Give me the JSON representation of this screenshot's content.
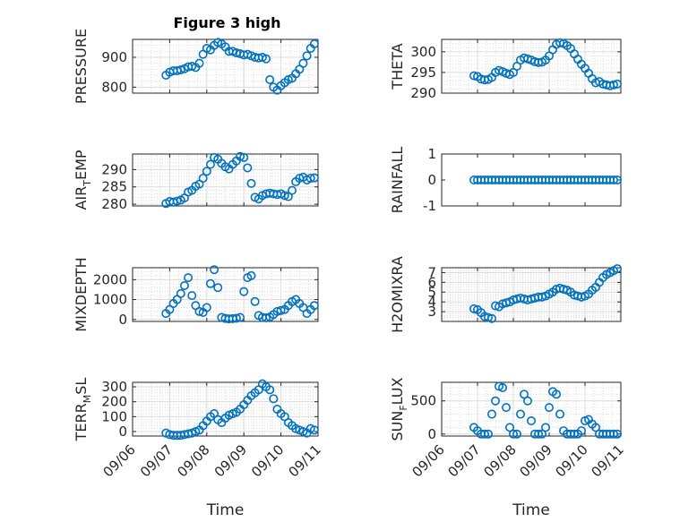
{
  "colors": {
    "marker": "#0072BD",
    "grid": "#dcdcdc",
    "axis": "#262626"
  },
  "chart_data": [
    {
      "type": "scatter",
      "id": "pressure",
      "title": "Figure 3 high",
      "ylabel": "PRESSURE",
      "ylabel_sub": "",
      "ylim": [
        780,
        960
      ],
      "yticks": [
        "800",
        "900"
      ],
      "ytick_values": [
        800,
        900
      ],
      "xlim": [
        0,
        5
      ],
      "xticks": [],
      "grid": true,
      "series": [
        {
          "x": [
            0.9,
            1.0,
            1.1,
            1.2,
            1.3,
            1.4,
            1.5,
            1.6,
            1.7,
            1.8,
            1.9,
            2.0,
            2.1,
            2.2,
            2.3,
            2.4,
            2.5,
            2.6,
            2.7,
            2.8,
            2.9,
            3.0,
            3.1,
            3.2,
            3.3,
            3.4,
            3.5,
            3.6,
            3.7,
            3.8,
            3.9,
            4.0,
            4.1,
            4.2,
            4.3,
            4.4,
            4.5,
            4.6,
            4.7,
            4.8,
            4.9
          ],
          "y": [
            840,
            850,
            855,
            855,
            858,
            862,
            868,
            870,
            866,
            880,
            910,
            930,
            925,
            940,
            950,
            945,
            935,
            920,
            920,
            915,
            912,
            908,
            910,
            905,
            900,
            898,
            900,
            895,
            825,
            800,
            790,
            805,
            815,
            825,
            830,
            845,
            860,
            880,
            905,
            930,
            945
          ]
        }
      ]
    },
    {
      "type": "scatter",
      "id": "theta",
      "title": "",
      "ylabel": "THETA",
      "ylabel_sub": "",
      "ylim": [
        290,
        303
      ],
      "yticks": [
        "290",
        "295",
        "300"
      ],
      "ytick_values": [
        290,
        295,
        300
      ],
      "xlim": [
        0,
        5
      ],
      "xticks": [],
      "grid": true,
      "series": [
        {
          "x": [
            0.9,
            1.0,
            1.1,
            1.2,
            1.3,
            1.4,
            1.5,
            1.6,
            1.7,
            1.8,
            1.9,
            2.0,
            2.1,
            2.2,
            2.3,
            2.4,
            2.5,
            2.6,
            2.7,
            2.8,
            2.9,
            3.0,
            3.1,
            3.2,
            3.3,
            3.4,
            3.5,
            3.6,
            3.7,
            3.8,
            3.9,
            4.0,
            4.1,
            4.2,
            4.3,
            4.4,
            4.5,
            4.6,
            4.7,
            4.8,
            4.9
          ],
          "y": [
            294.2,
            294.0,
            293.4,
            293.2,
            293.3,
            293.8,
            295.0,
            295.5,
            295.2,
            294.8,
            294.5,
            295.0,
            296.5,
            298.0,
            298.5,
            298.3,
            298.0,
            297.6,
            297.4,
            297.5,
            298.0,
            299.0,
            300.5,
            301.8,
            302.2,
            302.0,
            301.5,
            300.8,
            299.5,
            298.2,
            297.0,
            296.0,
            294.8,
            293.5,
            292.5,
            292.8,
            292.2,
            292.0,
            291.8,
            292.0,
            292.2
          ]
        }
      ]
    },
    {
      "type": "scatter",
      "id": "air_temp",
      "title": "",
      "ylabel": "AIR",
      "ylabel_sub": "T",
      "ylabel_rest": "EMP",
      "ylim": [
        279.5,
        294.5
      ],
      "yticks": [
        "280",
        "285",
        "290"
      ],
      "ytick_values": [
        280,
        285,
        290
      ],
      "xlim": [
        0,
        5
      ],
      "xticks": [],
      "grid": true,
      "series": [
        {
          "x": [
            0.9,
            1.0,
            1.1,
            1.2,
            1.3,
            1.4,
            1.5,
            1.6,
            1.7,
            1.8,
            1.9,
            2.0,
            2.1,
            2.2,
            2.3,
            2.4,
            2.5,
            2.6,
            2.7,
            2.8,
            2.9,
            3.0,
            3.1,
            3.2,
            3.3,
            3.4,
            3.5,
            3.6,
            3.7,
            3.8,
            3.9,
            4.0,
            4.1,
            4.2,
            4.3,
            4.4,
            4.5,
            4.6,
            4.7,
            4.8,
            4.9
          ],
          "y": [
            280.2,
            280.8,
            280.6,
            280.9,
            281.2,
            281.8,
            283.5,
            284.0,
            285.2,
            285.8,
            287.5,
            289.5,
            291.5,
            293.5,
            293.0,
            291.8,
            290.8,
            290.2,
            291.5,
            292.5,
            293.8,
            293.5,
            290.5,
            286.0,
            282.0,
            281.5,
            282.5,
            283.0,
            283.2,
            283.0,
            282.8,
            283.0,
            282.5,
            282.2,
            284.0,
            286.5,
            287.5,
            287.8,
            287.0,
            287.5,
            287.6
          ]
        }
      ]
    },
    {
      "type": "scatter",
      "id": "rainfall",
      "title": "",
      "ylabel": "RAINFALL",
      "ylabel_sub": "",
      "ylim": [
        -1,
        1
      ],
      "yticks": [
        "-1",
        "0",
        "1"
      ],
      "ytick_values": [
        -1,
        0,
        1
      ],
      "xlim": [
        0,
        5
      ],
      "xticks": [],
      "grid": false,
      "series": [
        {
          "x": [
            0.9,
            1.0,
            1.1,
            1.2,
            1.3,
            1.4,
            1.5,
            1.6,
            1.7,
            1.8,
            1.9,
            2.0,
            2.1,
            2.2,
            2.3,
            2.4,
            2.5,
            2.6,
            2.7,
            2.8,
            2.9,
            3.0,
            3.1,
            3.2,
            3.3,
            3.4,
            3.5,
            3.6,
            3.7,
            3.8,
            3.9,
            4.0,
            4.1,
            4.2,
            4.3,
            4.4,
            4.5,
            4.6,
            4.7,
            4.8,
            4.9
          ],
          "y": [
            0,
            0,
            0,
            0,
            0,
            0,
            0,
            0,
            0,
            0,
            0,
            0,
            0,
            0,
            0,
            0,
            0,
            0,
            0,
            0,
            0,
            0,
            0,
            0,
            0,
            0,
            0,
            0,
            0,
            0,
            0,
            0,
            0,
            0,
            0,
            0,
            0,
            0,
            0,
            0,
            0
          ]
        }
      ]
    },
    {
      "type": "scatter",
      "id": "mixdepth",
      "title": "",
      "ylabel": "MIXDEPTH",
      "ylabel_sub": "",
      "ylim": [
        -100,
        2600
      ],
      "yticks": [
        "0",
        "1000",
        "2000"
      ],
      "ytick_values": [
        0,
        1000,
        2000
      ],
      "xlim": [
        0,
        5
      ],
      "xticks": [],
      "grid": true,
      "series": [
        {
          "x": [
            0.9,
            1.0,
            1.1,
            1.2,
            1.3,
            1.4,
            1.5,
            1.6,
            1.7,
            1.8,
            1.9,
            2.0,
            2.1,
            2.2,
            2.3,
            2.4,
            2.5,
            2.6,
            2.7,
            2.8,
            2.9,
            3.0,
            3.1,
            3.2,
            3.3,
            3.4,
            3.5,
            3.6,
            3.7,
            3.8,
            3.9,
            4.0,
            4.1,
            4.2,
            4.3,
            4.4,
            4.5,
            4.6,
            4.7,
            4.8,
            4.9
          ],
          "y": [
            300,
            500,
            800,
            1000,
            1300,
            1700,
            2100,
            1200,
            700,
            400,
            350,
            600,
            1800,
            2500,
            1600,
            100,
            50,
            30,
            40,
            60,
            100,
            1400,
            2100,
            2200,
            900,
            200,
            100,
            80,
            120,
            250,
            400,
            450,
            500,
            700,
            900,
            1000,
            800,
            600,
            300,
            500,
            700
          ]
        }
      ]
    },
    {
      "type": "scatter",
      "id": "h2omixra",
      "title": "",
      "ylabel": "H2OMIXRA",
      "ylabel_sub": "",
      "ylim": [
        2,
        7.5
      ],
      "yticks": [
        "3",
        "4",
        "5",
        "6",
        "7"
      ],
      "ytick_values": [
        3,
        4,
        5,
        6,
        7
      ],
      "xlim": [
        0,
        5
      ],
      "xticks": [],
      "grid": true,
      "series": [
        {
          "x": [
            0.9,
            1.0,
            1.1,
            1.2,
            1.3,
            1.4,
            1.5,
            1.6,
            1.7,
            1.8,
            1.9,
            2.0,
            2.1,
            2.2,
            2.3,
            2.4,
            2.5,
            2.6,
            2.7,
            2.8,
            2.9,
            3.0,
            3.1,
            3.2,
            3.3,
            3.4,
            3.5,
            3.6,
            3.7,
            3.8,
            3.9,
            4.0,
            4.1,
            4.2,
            4.3,
            4.4,
            4.5,
            4.6,
            4.7,
            4.8,
            4.9
          ],
          "y": [
            3.3,
            3.2,
            2.9,
            2.5,
            2.4,
            2.3,
            3.6,
            3.5,
            3.8,
            3.9,
            4.0,
            4.2,
            4.3,
            4.4,
            4.3,
            4.2,
            4.3,
            4.4,
            4.5,
            4.5,
            4.6,
            4.8,
            5.0,
            5.3,
            5.4,
            5.3,
            5.2,
            5.0,
            4.7,
            4.6,
            4.5,
            4.6,
            4.8,
            5.2,
            5.5,
            6.0,
            6.5,
            6.8,
            7.0,
            7.2,
            7.4
          ]
        }
      ]
    },
    {
      "type": "scatter",
      "id": "terr_msl",
      "title": "",
      "ylabel": "TERR",
      "ylabel_sub": "M",
      "ylabel_rest": "SL",
      "ylim": [
        -30,
        330
      ],
      "yticks": [
        "0",
        "100",
        "200",
        "300"
      ],
      "ytick_values": [
        0,
        100,
        200,
        300
      ],
      "xlim": [
        0,
        5
      ],
      "xticks": [
        "09/06",
        "09/07",
        "09/08",
        "09/09",
        "09/10",
        "09/11"
      ],
      "xtick_values": [
        0,
        1,
        2,
        3,
        4,
        5
      ],
      "xlabel": "Time",
      "grid": true,
      "series": [
        {
          "x": [
            0.9,
            1.0,
            1.1,
            1.2,
            1.3,
            1.4,
            1.5,
            1.6,
            1.7,
            1.8,
            1.9,
            2.0,
            2.1,
            2.2,
            2.3,
            2.4,
            2.5,
            2.6,
            2.7,
            2.8,
            2.9,
            3.0,
            3.1,
            3.2,
            3.3,
            3.4,
            3.5,
            3.6,
            3.7,
            3.8,
            3.9,
            4.0,
            4.1,
            4.2,
            4.3,
            4.4,
            4.5,
            4.6,
            4.7,
            4.8,
            4.9
          ],
          "y": [
            -10,
            -20,
            -25,
            -25,
            -25,
            -20,
            -15,
            -10,
            0,
            10,
            40,
            70,
            100,
            120,
            80,
            60,
            90,
            110,
            120,
            130,
            150,
            180,
            210,
            240,
            260,
            280,
            320,
            300,
            280,
            220,
            150,
            120,
            100,
            60,
            40,
            20,
            10,
            0,
            -10,
            20,
            10
          ]
        }
      ]
    },
    {
      "type": "scatter",
      "id": "sun_flux",
      "title": "",
      "ylabel": "SUN",
      "ylabel_sub": "F",
      "ylabel_rest": "LUX",
      "ylim": [
        -30,
        780
      ],
      "yticks": [
        "0",
        "500"
      ],
      "ytick_values": [
        0,
        500
      ],
      "xlim": [
        0,
        5
      ],
      "xticks": [
        "09/06",
        "09/07",
        "09/08",
        "09/09",
        "09/10",
        "09/11"
      ],
      "xtick_values": [
        0,
        1,
        2,
        3,
        4,
        5
      ],
      "xlabel": "Time",
      "grid": true,
      "series": [
        {
          "x": [
            0.9,
            1.0,
            1.1,
            1.2,
            1.3,
            1.4,
            1.5,
            1.6,
            1.7,
            1.8,
            1.9,
            2.0,
            2.1,
            2.2,
            2.3,
            2.4,
            2.5,
            2.6,
            2.7,
            2.8,
            2.9,
            3.0,
            3.1,
            3.2,
            3.3,
            3.4,
            3.5,
            3.6,
            3.7,
            3.8,
            3.9,
            4.0,
            4.1,
            4.2,
            4.3,
            4.4,
            4.5,
            4.6,
            4.7,
            4.8,
            4.9
          ],
          "y": [
            100,
            50,
            0,
            0,
            0,
            300,
            500,
            720,
            700,
            400,
            100,
            0,
            0,
            300,
            600,
            500,
            200,
            0,
            0,
            0,
            100,
            400,
            640,
            600,
            300,
            50,
            0,
            0,
            0,
            0,
            50,
            200,
            220,
            150,
            100,
            0,
            0,
            0,
            0,
            0,
            0
          ]
        }
      ]
    }
  ]
}
